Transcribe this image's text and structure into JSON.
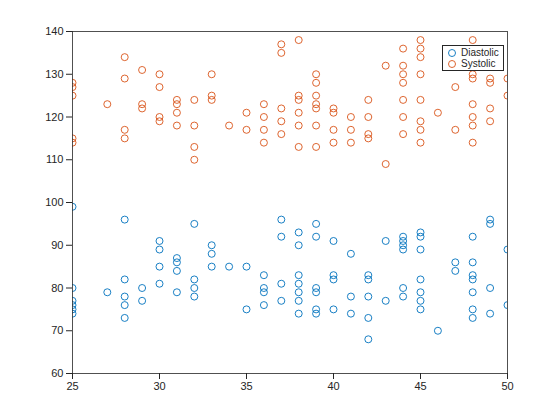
{
  "chart_data": {
    "type": "scatter",
    "xlim": [
      25,
      50
    ],
    "ylim": [
      60,
      140
    ],
    "xticks": [
      25,
      30,
      35,
      40,
      45,
      50
    ],
    "yticks": [
      60,
      70,
      80,
      90,
      100,
      110,
      120,
      130,
      140
    ],
    "legend": "northeast",
    "series": [
      {
        "name": "Diastolic",
        "color": "#0072BD",
        "marker": "circle",
        "x": [
          25,
          25,
          25,
          25,
          25,
          25,
          27,
          28,
          28,
          28,
          28,
          28,
          29,
          29,
          30,
          30,
          30,
          30,
          31,
          31,
          31,
          31,
          32,
          32,
          32,
          32,
          33,
          33,
          33,
          34,
          35,
          35,
          36,
          36,
          36,
          36,
          37,
          37,
          37,
          37,
          38,
          38,
          38,
          38,
          38,
          38,
          38,
          39,
          39,
          39,
          39,
          39,
          39,
          40,
          40,
          40,
          40,
          41,
          41,
          41,
          42,
          42,
          42,
          42,
          42,
          43,
          43,
          44,
          44,
          44,
          44,
          44,
          44,
          45,
          45,
          45,
          45,
          45,
          45,
          45,
          46,
          47,
          47,
          48,
          48,
          48,
          48,
          48,
          48,
          48,
          49,
          49,
          49,
          49,
          50,
          50
        ],
        "values": [
          99,
          80,
          77,
          76,
          75,
          74,
          79,
          96,
          82,
          78,
          76,
          73,
          80,
          77,
          91,
          89,
          85,
          81,
          87,
          86,
          84,
          79,
          95,
          82,
          80,
          78,
          90,
          88,
          85,
          85,
          85,
          75,
          83,
          80,
          79,
          76,
          96,
          92,
          81,
          77,
          93,
          90,
          83,
          81,
          79,
          77,
          74,
          95,
          92,
          80,
          79,
          75,
          74,
          91,
          83,
          82,
          75,
          88,
          78,
          74,
          83,
          82,
          78,
          73,
          68,
          91,
          77,
          92,
          91,
          90,
          89,
          80,
          78,
          93,
          92,
          89,
          82,
          79,
          77,
          75,
          70,
          86,
          84,
          92,
          86,
          83,
          82,
          79,
          75,
          73,
          96,
          95,
          80,
          74,
          89,
          76
        ]
      },
      {
        "name": "Systolic",
        "color": "#D95319",
        "marker": "circle",
        "x": [
          25,
          25,
          25,
          25,
          25,
          27,
          28,
          28,
          28,
          28,
          29,
          29,
          29,
          30,
          30,
          30,
          30,
          31,
          31,
          31,
          31,
          32,
          32,
          32,
          32,
          33,
          33,
          33,
          34,
          35,
          35,
          36,
          36,
          36,
          36,
          37,
          37,
          37,
          37,
          37,
          38,
          38,
          38,
          38,
          38,
          38,
          39,
          39,
          39,
          39,
          39,
          39,
          39,
          40,
          40,
          40,
          40,
          41,
          41,
          41,
          42,
          42,
          42,
          42,
          43,
          43,
          44,
          44,
          44,
          44,
          44,
          44,
          44,
          45,
          45,
          45,
          45,
          45,
          45,
          45,
          45,
          46,
          47,
          47,
          48,
          48,
          48,
          48,
          48,
          48,
          48,
          49,
          49,
          49,
          49,
          50,
          50
        ],
        "values": [
          128,
          127,
          125,
          115,
          114,
          123,
          134,
          129,
          117,
          115,
          131,
          123,
          122,
          130,
          127,
          120,
          119,
          124,
          123,
          121,
          118,
          124,
          118,
          113,
          110,
          130,
          125,
          124,
          118,
          121,
          117,
          123,
          120,
          117,
          114,
          137,
          135,
          122,
          119,
          116,
          138,
          125,
          124,
          121,
          118,
          113,
          130,
          128,
          125,
          123,
          122,
          118,
          113,
          122,
          121,
          117,
          114,
          120,
          117,
          114,
          124,
          120,
          116,
          115,
          132,
          109,
          136,
          132,
          130,
          128,
          124,
          120,
          116,
          138,
          136,
          134,
          130,
          124,
          119,
          117,
          114,
          121,
          127,
          117,
          138,
          130,
          129,
          123,
          120,
          118,
          114,
          129,
          128,
          122,
          119,
          129,
          125
        ]
      }
    ]
  }
}
